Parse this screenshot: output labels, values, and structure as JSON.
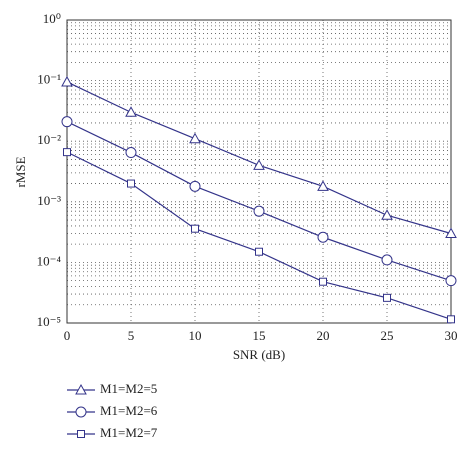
{
  "chart_data": {
    "type": "line",
    "x_label": "SNR (dB)",
    "y_label": "rMSE",
    "x": [
      0,
      5,
      10,
      15,
      20,
      25,
      30
    ],
    "series": [
      {
        "name": "M1=M2=5",
        "color": "#34348a",
        "marker": "triangle",
        "values": [
          0.095,
          0.03,
          0.011,
          0.004,
          0.0018,
          0.0006,
          0.0003
        ]
      },
      {
        "name": "M1=M2=6",
        "color": "#34348a",
        "marker": "circle",
        "values": [
          0.021,
          0.0065,
          0.0018,
          0.0007,
          0.00026,
          0.00011,
          5e-05
        ]
      },
      {
        "name": "M1=M2=7",
        "color": "#34348a",
        "marker": "square",
        "values": [
          0.0066,
          0.002,
          0.00036,
          0.00015,
          4.8e-05,
          2.6e-05,
          1.15e-05
        ]
      }
    ],
    "xlim": [
      0,
      30
    ],
    "xticks": [
      0,
      5,
      10,
      15,
      20,
      25,
      30
    ],
    "ylim": [
      1e-05,
      1
    ],
    "y_log": true,
    "yticks": [
      {
        "value": 1,
        "label": "10⁰"
      },
      {
        "value": 0.1,
        "label": "10⁻¹"
      },
      {
        "value": 0.01,
        "label": "10⁻²"
      },
      {
        "value": 0.001,
        "label": "10⁻³"
      },
      {
        "value": 0.0001,
        "label": "10⁻⁴"
      },
      {
        "value": 1e-05,
        "label": "10⁻⁵"
      }
    ],
    "grid": true,
    "minor_grid": true,
    "legend": "bottom-left"
  }
}
